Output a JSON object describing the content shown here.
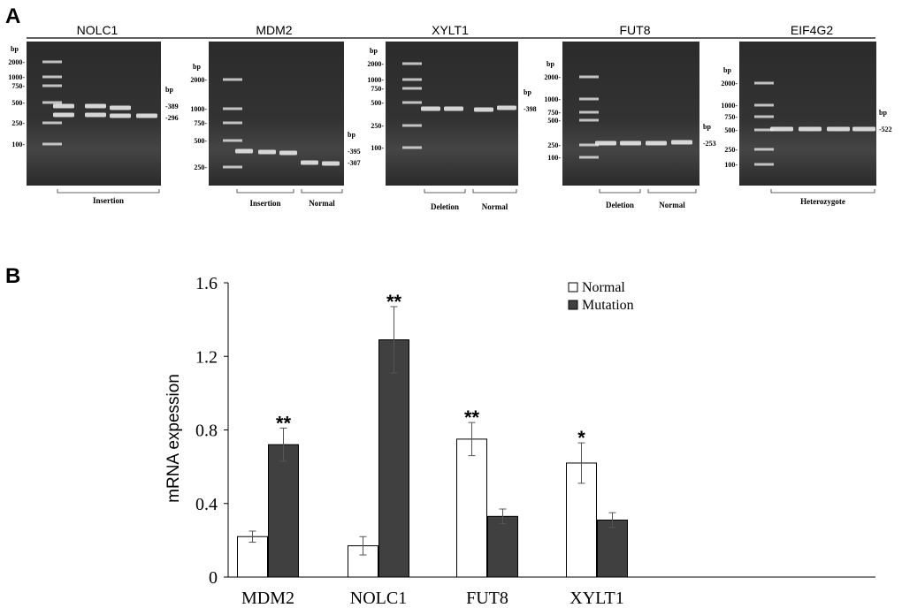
{
  "panel_a": {
    "label": "A",
    "gels": [
      {
        "title": "NOLC1",
        "ladder_unit": "bp",
        "ladder": [
          "2000",
          "1000",
          "750",
          "500",
          "250",
          "100"
        ],
        "band_unit": "bp",
        "bands": [
          "389",
          "296"
        ],
        "groups": [
          "Insertion"
        ]
      },
      {
        "title": "MDM2",
        "ladder_unit": "bp",
        "ladder": [
          "2000",
          "1000",
          "750",
          "500",
          "250"
        ],
        "band_unit": "bp",
        "bands": [
          "395",
          "307"
        ],
        "groups": [
          "Insertion",
          "Normal"
        ]
      },
      {
        "title": "XYLT1",
        "ladder_unit": "bp",
        "ladder": [
          "2000",
          "1000",
          "750",
          "500",
          "250",
          "100"
        ],
        "band_unit": "bp",
        "bands": [
          "398"
        ],
        "groups": [
          "Deletion",
          "Normal"
        ]
      },
      {
        "title": "FUT8",
        "ladder_unit": "bp",
        "ladder": [
          "2000",
          "1000",
          "750",
          "500",
          "250",
          "100"
        ],
        "band_unit": "bp",
        "bands": [
          "253"
        ],
        "groups": [
          "Deletion",
          "Normal"
        ]
      },
      {
        "title": "EIF4G2",
        "ladder_unit": "bp",
        "ladder": [
          "2000",
          "1000",
          "750",
          "500",
          "250",
          "100"
        ],
        "band_unit": "bp",
        "bands": [
          "522"
        ],
        "groups": [
          "Heterozygote"
        ]
      }
    ]
  },
  "panel_b": {
    "label": "B"
  },
  "chart_data": {
    "type": "bar",
    "title": "",
    "xlabel": "",
    "ylabel": "mRNA expession",
    "categories": [
      "MDM2",
      "NOLC1",
      "FUT8",
      "XYLT1"
    ],
    "ylim": [
      0,
      1.6
    ],
    "yticks": [
      "0",
      "0.4",
      "0.8",
      "1.2",
      "1.6"
    ],
    "grid": false,
    "legend_position": "top-right",
    "series": [
      {
        "name": "Normal",
        "color": "#ffffff",
        "values": [
          0.22,
          0.17,
          0.75,
          0.62
        ],
        "errors": [
          0.03,
          0.05,
          0.09,
          0.11
        ]
      },
      {
        "name": "Mutation",
        "color": "#404040",
        "values": [
          0.72,
          1.29,
          0.33,
          0.31
        ],
        "errors": [
          0.09,
          0.18,
          0.04,
          0.04
        ]
      }
    ],
    "annotations": [
      {
        "category": "MDM2",
        "series": "Mutation",
        "text": "**"
      },
      {
        "category": "NOLC1",
        "series": "Mutation",
        "text": "**"
      },
      {
        "category": "FUT8",
        "series": "Normal",
        "text": "**"
      },
      {
        "category": "XYLT1",
        "series": "Normal",
        "text": "*"
      }
    ]
  }
}
